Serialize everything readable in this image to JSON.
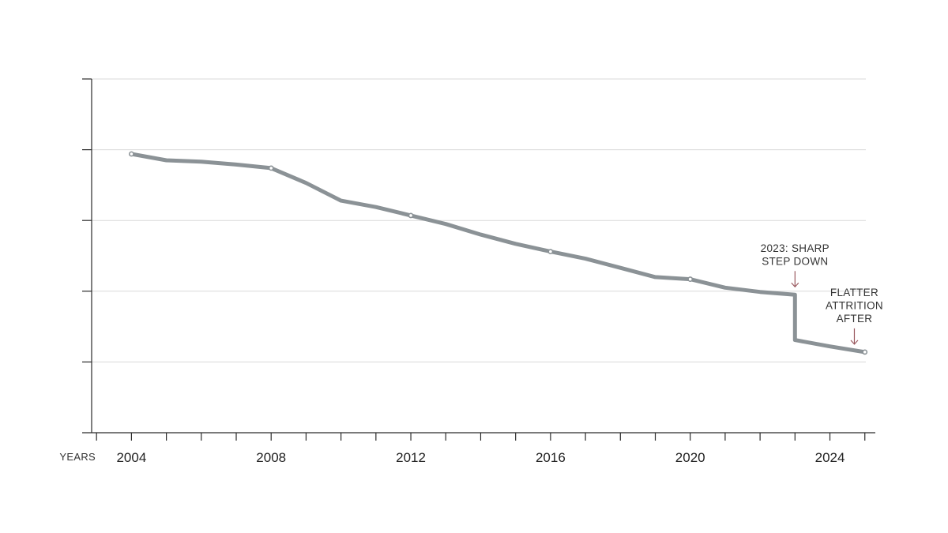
{
  "chart_data": {
    "type": "line",
    "title": "",
    "xlabel": "YEARS",
    "ylabel": "",
    "x": [
      2004,
      2005,
      2006,
      2007,
      2008,
      2009,
      2010,
      2011,
      2012,
      2013,
      2014,
      2015,
      2016,
      2017,
      2018,
      2019,
      2020,
      2021,
      2022,
      2023,
      2023,
      2024,
      2025
    ],
    "series": [
      {
        "values": [
          3.94,
          3.85,
          3.83,
          3.79,
          3.74,
          3.53,
          3.28,
          3.19,
          3.07,
          2.95,
          2.8,
          2.67,
          2.56,
          2.46,
          2.33,
          2.2,
          2.17,
          2.05,
          1.99,
          1.95,
          1.31,
          1.22,
          1.14
        ],
        "color": "#8b9296"
      }
    ],
    "marked_points": [
      2004,
      2008,
      2012,
      2016,
      2020,
      2025
    ],
    "xticks": [
      2004,
      2008,
      2012,
      2016,
      2020,
      2024
    ],
    "xlim": [
      2002.86,
      2025.3
    ],
    "ylim": [
      0,
      5
    ],
    "yticks": [
      1,
      2,
      3,
      4,
      5
    ],
    "ytick_labels_shown": false,
    "grid": "horizontal",
    "annotations": [
      {
        "text_lines": [
          "2023: SHARP",
          "STEP DOWN"
        ],
        "x": 2023,
        "y": 1.95
      },
      {
        "text_lines": [
          "FLATTER",
          "ATTRITION",
          "AFTER"
        ],
        "x": 2024.7,
        "y": 1.14
      }
    ],
    "colors": {
      "line": "#8b9296",
      "axis": "#2b2b2b",
      "grid": "#d9d9d9",
      "arrow": "#9a5a60",
      "text": "#222222"
    }
  }
}
